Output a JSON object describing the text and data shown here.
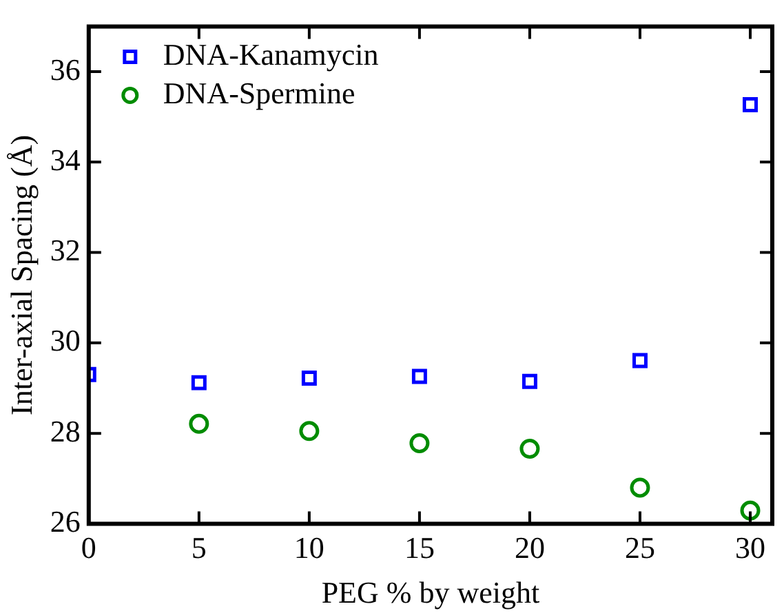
{
  "chart_data": {
    "type": "scatter",
    "xlabel": "PEG % by weight",
    "ylabel": "Inter-axial Spacing (Å)",
    "xlim": [
      0,
      31
    ],
    "xticks": [
      0,
      5,
      10,
      15,
      20,
      25,
      30
    ],
    "ylim": [
      26,
      37
    ],
    "yticks": [
      26,
      28,
      30,
      32,
      34,
      36
    ],
    "grid": false,
    "legend": "top left",
    "series": [
      {
        "name": "DNA-Kanamycin",
        "color": "#0000ff",
        "marker": "square",
        "x": [
          0,
          5,
          10,
          15,
          20,
          25,
          30
        ],
        "values": [
          29.3,
          29.12,
          29.22,
          29.26,
          29.15,
          29.61,
          35.27
        ]
      },
      {
        "name": "DNA-Spermine",
        "color": "#008c00",
        "marker": "circle",
        "x": [
          5,
          10,
          15,
          20,
          25,
          30
        ],
        "values": [
          28.21,
          28.05,
          27.78,
          27.66,
          26.8,
          26.29
        ]
      }
    ]
  }
}
